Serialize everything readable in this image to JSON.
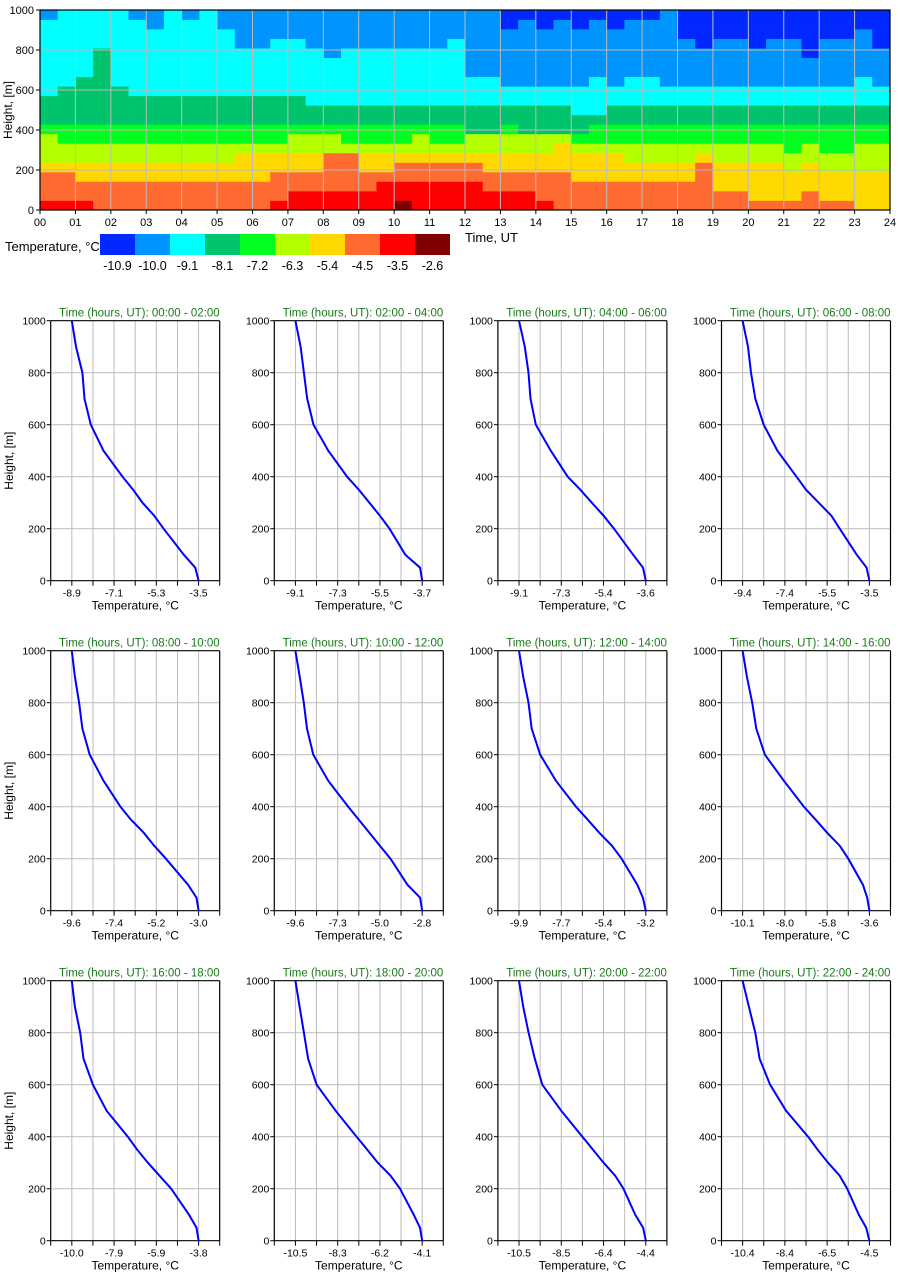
{
  "chart_data": [
    {
      "type": "heatmap",
      "xlabel": "Time, UT",
      "ylabel": "Height, [m]",
      "xlim": [
        0,
        24
      ],
      "ylim": [
        0,
        1000
      ],
      "xticks": [
        "00",
        "01",
        "02",
        "03",
        "04",
        "05",
        "06",
        "07",
        "08",
        "09",
        "10",
        "11",
        "12",
        "13",
        "14",
        "15",
        "16",
        "17",
        "18",
        "19",
        "20",
        "21",
        "22",
        "23",
        "24"
      ],
      "yticks": [
        0,
        200,
        400,
        600,
        800,
        1000
      ],
      "grid": true,
      "time_step_hours": 0.5,
      "height_bins": 21,
      "colorbar": {
        "label": "Temperature, °C",
        "levels": [
          "-10.9",
          "-10.0",
          "-9.1",
          "-8.1",
          "-7.2",
          "-6.3",
          "-5.4",
          "-4.5",
          "-3.5",
          "-2.6"
        ],
        "colors": [
          "#0028ff",
          "#0094ff",
          "#00ffff",
          "#00c46c",
          "#00ff1e",
          "#b4ff00",
          "#ffd800",
          "#ff6a30",
          "#ff0000",
          "#800000"
        ]
      },
      "columns_class_index_bottom_to_top": [
        "877765554333222222221",
        "877765544333322222222",
        "877665544333332222222",
        "777665544333333332222",
        "777665544333322222222",
        "777665544333222222221",
        "777665544333222222211",
        "777665544333222222222",
        "777665544333222222221",
        "777665544333222222222",
        "777665544333222222211",
        "777666544333222221111",
        "777666544333222221111",
        "877766544333222222111",
        "887766554333222222111",
        "887766554332222221111",
        "887777554332222211111",
        "887777544332222221111",
        "887766544332222221111",
        "888766544332222221111",
        "988776544332222221111",
        "888776554332222221111",
        "888776544332222221111",
        "888776544332222222111",
        "888776553332221111111",
        "887766553332221111111",
        "887766554332211111100",
        "887766553332211111110",
        "877766553332211111100",
        "777766653332211111110",
        "777666543322211111100",
        "777666544322221111110",
        "777666544332211111100",
        "777665544332221111110",
        "777665544332221111110",
        "777665544332211111111",
        "777665544332211111000",
        "777776544332211110000",
        "776665544332211111000",
        "776665544332211111000",
        "766665544332211110000",
        "766665544332211111000",
        "766655444332211111000",
        "776665544332211100000",
        "766655444332211111000",
        "766655444332211111000",
        "666655544332221111100",
        "666655544332211110000"
      ]
    },
    {
      "type": "line",
      "title": "Time (hours, UT): 00:00 - 02:00",
      "xlabel": "Temperature, °C",
      "ylabel": "Height, [m]",
      "xticks": [
        "-8.9",
        "-7.1",
        "-5.3",
        "-3.5"
      ],
      "ylim": [
        0,
        1000
      ],
      "yticks": [
        0,
        200,
        400,
        600,
        800,
        1000
      ],
      "color": "#0000ff",
      "height": [
        0,
        50,
        100,
        200,
        250,
        300,
        350,
        400,
        500,
        600,
        700,
        800,
        900,
        1000
      ],
      "temperature": [
        -3.5,
        -3.64,
        -4.13,
        -4.99,
        -5.39,
        -5.89,
        -6.29,
        -6.74,
        -7.55,
        -8.09,
        -8.36,
        -8.45,
        -8.72,
        -8.9
      ]
    },
    {
      "type": "line",
      "title": "Time (hours, UT): 02:00 - 04:00",
      "xlabel": "Temperature, °C",
      "xticks": [
        "-9.1",
        "-7.3",
        "-5.5",
        "-3.7"
      ],
      "ylim": [
        0,
        1000
      ],
      "yticks": [
        0,
        200,
        400,
        600,
        800,
        1000
      ],
      "color": "#0000ff",
      "height": [
        0,
        50,
        100,
        200,
        250,
        300,
        350,
        400,
        500,
        600,
        700,
        800,
        900,
        1000
      ],
      "temperature": [
        -3.7,
        -3.79,
        -4.42,
        -5.09,
        -5.5,
        -5.95,
        -6.4,
        -6.9,
        -7.7,
        -8.33,
        -8.6,
        -8.74,
        -8.88,
        -9.1
      ]
    },
    {
      "type": "line",
      "title": "Time (hours, UT): 04:00 - 06:00",
      "xlabel": "Temperature, °C",
      "xticks": [
        "-9.1",
        "-7.3",
        "-5.4",
        "-3.6"
      ],
      "ylim": [
        0,
        1000
      ],
      "yticks": [
        0,
        200,
        400,
        600,
        800,
        1000
      ],
      "color": "#0000ff",
      "height": [
        0,
        50,
        100,
        200,
        250,
        300,
        350,
        400,
        500,
        600,
        700,
        800,
        900,
        1000
      ],
      "temperature": [
        -3.6,
        -3.72,
        -4.15,
        -4.98,
        -5.43,
        -5.94,
        -6.44,
        -6.99,
        -7.72,
        -8.37,
        -8.6,
        -8.69,
        -8.85,
        -9.1
      ]
    },
    {
      "type": "line",
      "title": "Time (hours, UT): 06:00 - 08:00",
      "xlabel": "Temperature, °C",
      "xticks": [
        "-9.4",
        "-7.4",
        "-5.5",
        "-3.5"
      ],
      "ylim": [
        0,
        1000
      ],
      "yticks": [
        0,
        200,
        400,
        600,
        800,
        1000
      ],
      "color": "#0000ff",
      "height": [
        0,
        50,
        100,
        200,
        250,
        300,
        350,
        400,
        500,
        600,
        700,
        800,
        900,
        1000
      ],
      "temperature": [
        -3.5,
        -3.63,
        -4.09,
        -4.88,
        -5.27,
        -5.86,
        -6.45,
        -6.89,
        -7.78,
        -8.42,
        -8.81,
        -9.01,
        -9.15,
        -9.4
      ]
    },
    {
      "type": "line",
      "title": "Time (hours, UT): 08:00 - 10:00",
      "xlabel": "Temperature, °C",
      "ylabel": "Height, [m]",
      "xticks": [
        "-9.6",
        "-7.4",
        "-5.2",
        "-3.0"
      ],
      "ylim": [
        0,
        1000
      ],
      "yticks": [
        0,
        200,
        400,
        600,
        800,
        1000
      ],
      "color": "#0000ff",
      "height": [
        0,
        50,
        100,
        200,
        250,
        300,
        350,
        400,
        500,
        600,
        700,
        800,
        900,
        1000
      ],
      "temperature": [
        -3.0,
        -3.11,
        -3.55,
        -4.7,
        -5.31,
        -5.86,
        -6.52,
        -7.07,
        -7.95,
        -8.67,
        -9.05,
        -9.22,
        -9.44,
        -9.6
      ]
    },
    {
      "type": "line",
      "title": "Time (hours, UT): 10:00 - 12:00",
      "xlabel": "Temperature, °C",
      "xticks": [
        "-9.6",
        "-7.3",
        "-5.0",
        "-2.8"
      ],
      "ylim": [
        0,
        1000
      ],
      "yticks": [
        0,
        200,
        400,
        600,
        800,
        1000
      ],
      "color": "#0000ff",
      "height": [
        0,
        50,
        100,
        200,
        250,
        300,
        350,
        400,
        500,
        600,
        700,
        800,
        900,
        1000
      ],
      "temperature": [
        -2.8,
        -2.91,
        -3.59,
        -4.5,
        -5.07,
        -5.63,
        -6.2,
        -6.77,
        -7.84,
        -8.64,
        -8.98,
        -9.15,
        -9.37,
        -9.6
      ]
    },
    {
      "type": "line",
      "title": "Time (hours, UT): 12:00 - 14:00",
      "xlabel": "Temperature, °C",
      "xticks": [
        "-9.9",
        "-7.7",
        "-5.4",
        "-3.2"
      ],
      "ylim": [
        0,
        1000
      ],
      "yticks": [
        0,
        200,
        400,
        600,
        800,
        1000
      ],
      "color": "#0000ff",
      "height": [
        0,
        50,
        100,
        200,
        250,
        300,
        350,
        400,
        500,
        600,
        700,
        800,
        900,
        1000
      ],
      "temperature": [
        -3.2,
        -3.35,
        -3.65,
        -4.48,
        -4.99,
        -5.66,
        -6.27,
        -6.89,
        -7.95,
        -8.78,
        -9.23,
        -9.4,
        -9.68,
        -9.9
      ]
    },
    {
      "type": "line",
      "title": "Time (hours, UT): 14:00 - 16:00",
      "xlabel": "Temperature, °C",
      "xticks": [
        "-10.1",
        "-8.0",
        "-5.8",
        "-3.6"
      ],
      "ylim": [
        0,
        1000
      ],
      "yticks": [
        0,
        200,
        400,
        600,
        800,
        1000
      ],
      "color": "#0000ff",
      "height": [
        0,
        50,
        100,
        200,
        250,
        300,
        350,
        400,
        500,
        600,
        700,
        800,
        900,
        1000
      ],
      "temperature": [
        -3.6,
        -3.71,
        -3.93,
        -4.68,
        -5.12,
        -5.77,
        -6.36,
        -6.96,
        -7.99,
        -8.96,
        -9.4,
        -9.61,
        -9.88,
        -10.1
      ]
    },
    {
      "type": "line",
      "title": "Time (hours, UT): 16:00 - 18:00",
      "xlabel": "Temperature, °C",
      "ylabel": "Height, [m]",
      "xticks": [
        "-10.0",
        "-7.9",
        "-5.9",
        "-3.8"
      ],
      "ylim": [
        0,
        1000
      ],
      "yticks": [
        0,
        200,
        400,
        600,
        800,
        1000
      ],
      "color": "#0000ff",
      "height": [
        0,
        50,
        100,
        200,
        250,
        300,
        350,
        400,
        500,
        600,
        700,
        800,
        900,
        1000
      ],
      "temperature": [
        -3.8,
        -3.9,
        -4.27,
        -5.14,
        -5.71,
        -6.28,
        -6.8,
        -7.26,
        -8.3,
        -8.97,
        -9.43,
        -9.59,
        -9.85,
        -10.0
      ]
    },
    {
      "type": "line",
      "title": "Time (hours, UT): 18:00 - 20:00",
      "xlabel": "Temperature, °C",
      "xticks": [
        "-10.5",
        "-8.3",
        "-6.2",
        "-4.1"
      ],
      "ylim": [
        0,
        1000
      ],
      "yticks": [
        0,
        200,
        400,
        600,
        800,
        1000
      ],
      "color": "#0000ff",
      "height": [
        0,
        50,
        100,
        200,
        250,
        300,
        350,
        400,
        500,
        600,
        700,
        800,
        900,
        1000
      ],
      "temperature": [
        -4.1,
        -4.21,
        -4.53,
        -5.22,
        -5.7,
        -6.34,
        -6.87,
        -7.41,
        -8.47,
        -9.43,
        -9.86,
        -10.07,
        -10.29,
        -10.5
      ]
    },
    {
      "type": "line",
      "title": "Time (hours, UT): 20:00 - 22:00",
      "xlabel": "Temperature, °C",
      "xticks": [
        "-10.5",
        "-8.5",
        "-6.4",
        "-4.4"
      ],
      "ylim": [
        0,
        1000
      ],
      "yticks": [
        0,
        200,
        400,
        600,
        800,
        1000
      ],
      "color": "#0000ff",
      "height": [
        0,
        50,
        100,
        200,
        250,
        300,
        350,
        400,
        500,
        600,
        700,
        800,
        900,
        1000
      ],
      "temperature": [
        -4.4,
        -4.53,
        -4.91,
        -5.47,
        -5.87,
        -6.43,
        -6.94,
        -7.45,
        -8.47,
        -9.38,
        -9.74,
        -10.04,
        -10.3,
        -10.5
      ]
    },
    {
      "type": "line",
      "title": "Time (hours, UT): 22:00 - 24:00",
      "xlabel": "Temperature, °C",
      "xticks": [
        "-10.4",
        "-8.4",
        "-6.5",
        "-4.5"
      ],
      "ylim": [
        0,
        1000
      ],
      "yticks": [
        0,
        200,
        400,
        600,
        800,
        1000
      ],
      "color": "#0000ff",
      "height": [
        0,
        50,
        100,
        200,
        250,
        300,
        350,
        400,
        500,
        600,
        700,
        800,
        900,
        1000
      ],
      "temperature": [
        -4.5,
        -4.65,
        -4.99,
        -5.53,
        -5.88,
        -6.42,
        -6.91,
        -7.35,
        -8.38,
        -9.12,
        -9.61,
        -9.81,
        -10.11,
        -10.4
      ]
    }
  ]
}
